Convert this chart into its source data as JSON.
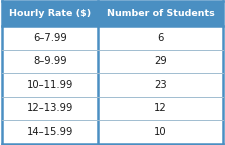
{
  "col_headers": [
    "Hourly Rate ($)",
    "Number of Students"
  ],
  "rows": [
    [
      "6–7.99",
      "6"
    ],
    [
      "8–9.99",
      "29"
    ],
    [
      "10–11.99",
      "23"
    ],
    [
      "12–13.99",
      "12"
    ],
    [
      "14–15.99",
      "10"
    ]
  ],
  "header_bg": "#4a8fc2",
  "header_text_color": "#ffffff",
  "row_bg": "#ffffff",
  "row_text_color": "#1a1a1a",
  "border_color": "#4a8fc2",
  "divider_color": "#a0bcd0",
  "header_fontsize": 6.8,
  "row_fontsize": 7.2,
  "fig_width": 2.25,
  "fig_height": 1.45,
  "dpi": 100
}
